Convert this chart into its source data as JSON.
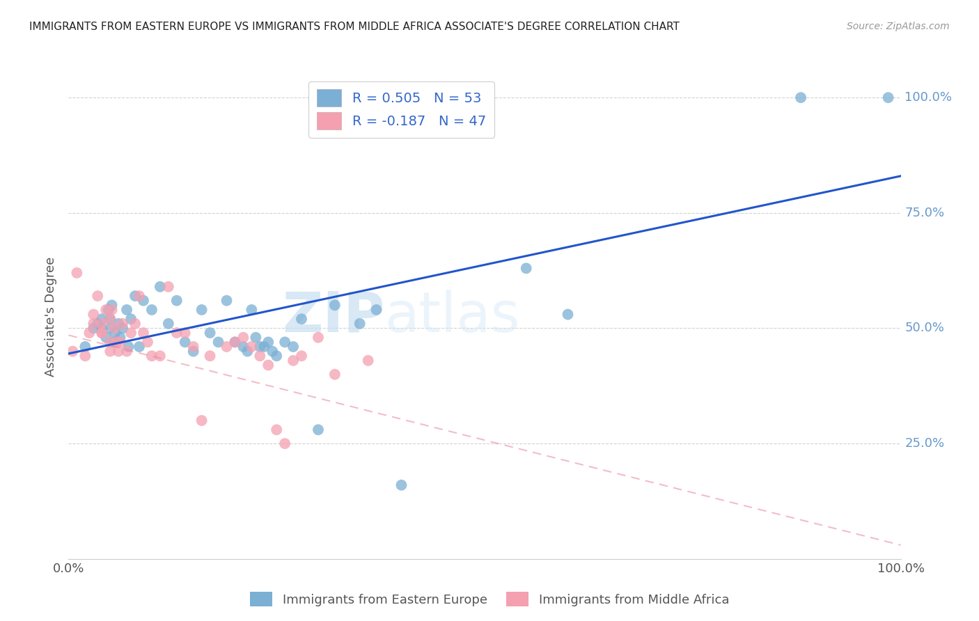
{
  "title": "IMMIGRANTS FROM EASTERN EUROPE VS IMMIGRANTS FROM MIDDLE AFRICA ASSOCIATE'S DEGREE CORRELATION CHART",
  "source": "Source: ZipAtlas.com",
  "ylabel": "Associate's Degree",
  "y_ticks_labels": [
    "25.0%",
    "50.0%",
    "75.0%",
    "100.0%"
  ],
  "y_tick_vals": [
    0.25,
    0.5,
    0.75,
    1.0
  ],
  "xlim": [
    0.0,
    1.0
  ],
  "ylim": [
    0.0,
    1.05
  ],
  "legend_r1": "R = 0.505",
  "legend_n1": "N = 53",
  "legend_r2": "R = -0.187",
  "legend_n2": "N = 47",
  "color_blue": "#7BAFD4",
  "color_pink": "#F4A0B0",
  "color_blue_line": "#2255CC",
  "color_pink_line": "#E8879A",
  "watermark_zip": "ZIP",
  "watermark_atlas": "atlas",
  "blue_x": [
    0.02,
    0.03,
    0.035,
    0.04,
    0.04,
    0.045,
    0.048,
    0.05,
    0.05,
    0.052,
    0.054,
    0.056,
    0.06,
    0.062,
    0.065,
    0.07,
    0.072,
    0.075,
    0.08,
    0.085,
    0.09,
    0.1,
    0.11,
    0.12,
    0.13,
    0.14,
    0.15,
    0.16,
    0.17,
    0.18,
    0.19,
    0.2,
    0.21,
    0.215,
    0.22,
    0.225,
    0.23,
    0.235,
    0.24,
    0.245,
    0.25,
    0.26,
    0.27,
    0.28,
    0.3,
    0.32,
    0.35,
    0.37,
    0.4,
    0.55,
    0.6,
    0.88,
    0.985
  ],
  "blue_y": [
    0.46,
    0.5,
    0.51,
    0.5,
    0.52,
    0.48,
    0.54,
    0.5,
    0.52,
    0.55,
    0.47,
    0.49,
    0.51,
    0.48,
    0.5,
    0.54,
    0.46,
    0.52,
    0.57,
    0.46,
    0.56,
    0.54,
    0.59,
    0.51,
    0.56,
    0.47,
    0.45,
    0.54,
    0.49,
    0.47,
    0.56,
    0.47,
    0.46,
    0.45,
    0.54,
    0.48,
    0.46,
    0.46,
    0.47,
    0.45,
    0.44,
    0.47,
    0.46,
    0.52,
    0.28,
    0.55,
    0.51,
    0.54,
    0.16,
    0.63,
    0.53,
    1.0,
    1.0
  ],
  "pink_x": [
    0.005,
    0.01,
    0.02,
    0.025,
    0.03,
    0.03,
    0.035,
    0.04,
    0.04,
    0.04,
    0.045,
    0.05,
    0.05,
    0.05,
    0.052,
    0.055,
    0.058,
    0.06,
    0.062,
    0.065,
    0.07,
    0.075,
    0.08,
    0.085,
    0.09,
    0.095,
    0.1,
    0.11,
    0.12,
    0.13,
    0.14,
    0.15,
    0.16,
    0.17,
    0.19,
    0.2,
    0.21,
    0.22,
    0.23,
    0.24,
    0.25,
    0.26,
    0.27,
    0.28,
    0.3,
    0.32,
    0.36
  ],
  "pink_y": [
    0.45,
    0.62,
    0.44,
    0.49,
    0.51,
    0.53,
    0.57,
    0.49,
    0.51,
    0.49,
    0.54,
    0.45,
    0.47,
    0.52,
    0.54,
    0.5,
    0.47,
    0.45,
    0.47,
    0.51,
    0.45,
    0.49,
    0.51,
    0.57,
    0.49,
    0.47,
    0.44,
    0.44,
    0.59,
    0.49,
    0.49,
    0.46,
    0.3,
    0.44,
    0.46,
    0.47,
    0.48,
    0.46,
    0.44,
    0.42,
    0.28,
    0.25,
    0.43,
    0.44,
    0.48,
    0.4,
    0.43
  ],
  "blue_line_y_start": 0.445,
  "blue_line_y_end": 0.83,
  "pink_line_y_start": 0.485,
  "pink_line_y_end": 0.03
}
